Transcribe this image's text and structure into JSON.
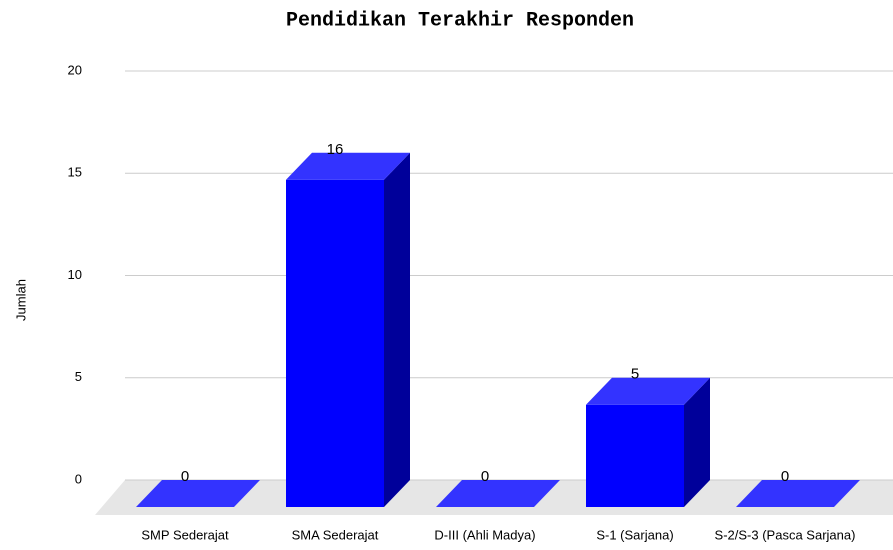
{
  "chart_data": {
    "type": "bar3d",
    "title": "Pendidikan Terakhir Responden",
    "y_label": "Jumlah",
    "categories": [
      "SMP Sederajat",
      "SMA Sederajat",
      "D-III (Ahli Madya)",
      "S-1 (Sarjana)",
      "S-2/S-3 (Pasca Sarjana)"
    ],
    "values": [
      0,
      16,
      0,
      5,
      0
    ],
    "color": "#0000ff",
    "ylim": [
      0,
      20
    ],
    "yticks": [
      0,
      5,
      10,
      15,
      20
    ],
    "grid": true
  }
}
